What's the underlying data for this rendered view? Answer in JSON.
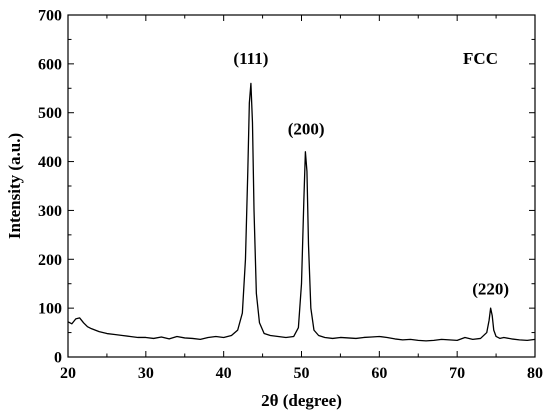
{
  "chart_data": {
    "type": "line",
    "xlabel": "2θ (degree)",
    "ylabel": "Intensity (a.u.)",
    "xlim": [
      20,
      80
    ],
    "ylim": [
      0,
      700
    ],
    "x_ticks": [
      20,
      30,
      40,
      50,
      60,
      70,
      80
    ],
    "y_ticks": [
      0,
      100,
      200,
      300,
      400,
      500,
      600,
      700
    ],
    "grid": false,
    "legend": "none",
    "annotations": [
      {
        "text": "(111)",
        "x": 43.5,
        "y": 600
      },
      {
        "text": "(200)",
        "x": 50.6,
        "y": 455
      },
      {
        "text": "(220)",
        "x": 74.3,
        "y": 128
      },
      {
        "text": "FCC",
        "x": 73.0,
        "y": 600
      }
    ],
    "series": [
      {
        "color": "#000000",
        "x": [
          20,
          20.5,
          21,
          21.5,
          22,
          22.5,
          23,
          24,
          25,
          26,
          27,
          28,
          29,
          30,
          31,
          32,
          33,
          34,
          35,
          36,
          37,
          38,
          39,
          40,
          41,
          41.8,
          42.4,
          42.8,
          43.1,
          43.3,
          43.5,
          43.7,
          43.9,
          44.2,
          44.6,
          45.2,
          46,
          47,
          48,
          49,
          49.6,
          50.0,
          50.3,
          50.5,
          50.7,
          50.9,
          51.2,
          51.6,
          52.2,
          53,
          54,
          55,
          56,
          57,
          58,
          59,
          60,
          61,
          62,
          63,
          64,
          65,
          66,
          67,
          68,
          69,
          70,
          71,
          72,
          73,
          73.8,
          74.1,
          74.3,
          74.5,
          74.7,
          75.0,
          75.5,
          76,
          77,
          78,
          79,
          80
        ],
        "y": [
          72,
          68,
          78,
          80,
          70,
          62,
          58,
          52,
          48,
          46,
          44,
          42,
          40,
          40,
          38,
          41,
          37,
          42,
          39,
          38,
          36,
          40,
          42,
          40,
          44,
          55,
          90,
          200,
          380,
          520,
          560,
          480,
          300,
          130,
          70,
          48,
          44,
          42,
          40,
          42,
          60,
          150,
          320,
          420,
          380,
          230,
          100,
          55,
          44,
          40,
          38,
          40,
          39,
          38,
          40,
          41,
          42,
          40,
          37,
          35,
          36,
          34,
          33,
          34,
          36,
          35,
          34,
          40,
          36,
          38,
          50,
          75,
          100,
          85,
          55,
          42,
          38,
          40,
          37,
          35,
          34,
          36
        ]
      }
    ]
  }
}
